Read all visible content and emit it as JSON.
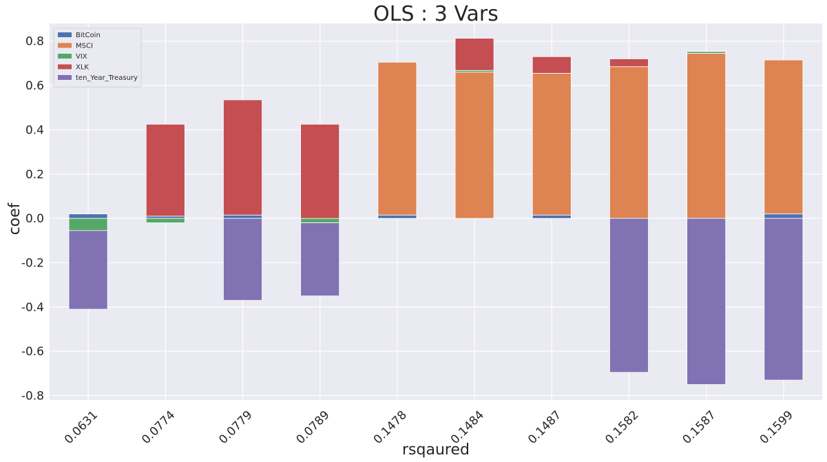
{
  "chart_data": {
    "type": "bar",
    "stacked": true,
    "title": "OLS : 3 Vars",
    "xlabel": "rsqaured",
    "ylabel": "coef",
    "categories": [
      "0.0631",
      "0.0774",
      "0.0779",
      "0.0789",
      "0.1478",
      "0.1484",
      "0.1487",
      "0.1582",
      "0.1587",
      "0.1599"
    ],
    "ylim": [
      -0.82,
      0.88
    ],
    "yticks": [
      -0.8,
      -0.6,
      -0.4,
      -0.2,
      0.0,
      0.2,
      0.4,
      0.6,
      0.8
    ],
    "ytick_labels": [
      "-0.8",
      "-0.6",
      "-0.4",
      "-0.2",
      "0.0",
      "0.2",
      "0.4",
      "0.6",
      "0.8"
    ],
    "grid": true,
    "legend_position": "top-left",
    "series": [
      {
        "name": "BitCoin",
        "color": "#4c72b0",
        "values": [
          0.02,
          0.01,
          0.015,
          0.0,
          0.015,
          0.0,
          0.015,
          0.0,
          0.0,
          0.02
        ]
      },
      {
        "name": "MSCI",
        "color": "#dd8452",
        "values": [
          0.0,
          0.0,
          0.0,
          0.0,
          0.69,
          0.66,
          0.64,
          0.685,
          0.745,
          0.695
        ]
      },
      {
        "name": "VIX",
        "color": "#55a868",
        "values": [
          -0.055,
          -0.02,
          0.0,
          -0.02,
          0.0,
          0.008,
          0.0,
          0.0,
          0.008,
          0.0
        ]
      },
      {
        "name": "XLK",
        "color": "#c44e52",
        "values": [
          0.0,
          0.415,
          0.52,
          0.425,
          0.0,
          0.145,
          0.075,
          0.035,
          0.0,
          0.0
        ]
      },
      {
        "name": "ten_Year_Treasury",
        "color": "#8172b3",
        "values": [
          -0.355,
          0.0,
          -0.37,
          -0.33,
          0.0,
          0.0,
          0.0,
          -0.695,
          -0.75,
          -0.73
        ]
      }
    ]
  }
}
